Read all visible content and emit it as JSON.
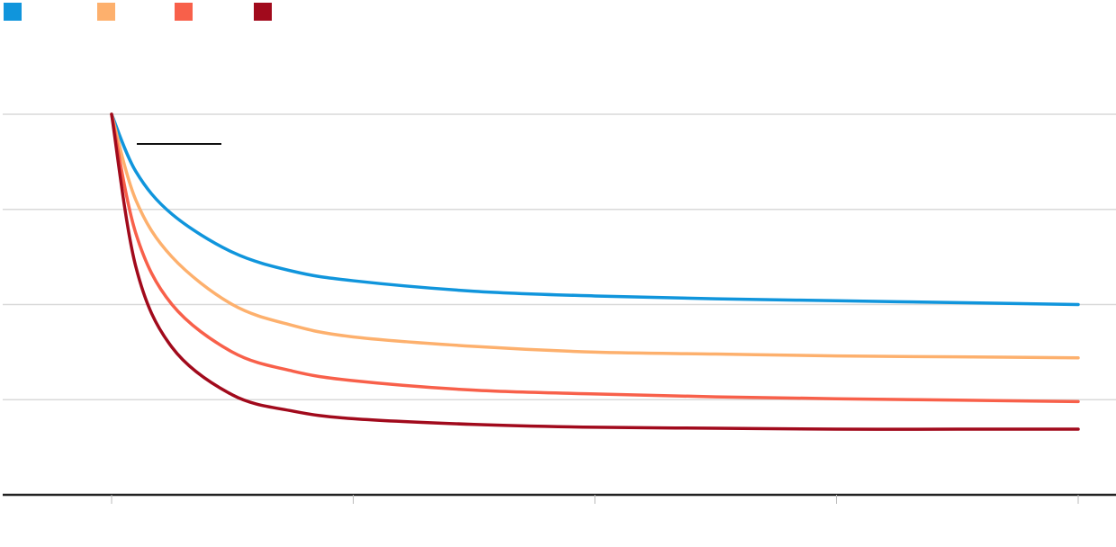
{
  "chart_data": {
    "type": "line",
    "title": "",
    "xlabel": "",
    "ylabel": "",
    "ylim": [
      0,
      4
    ],
    "xlim": [
      0,
      4
    ],
    "grid": true,
    "legend_placement": "top-left",
    "annotation": "",
    "series": [
      {
        "color": "#1095dc",
        "x": [
          0,
          0.1,
          0.25,
          0.5,
          0.75,
          1,
          1.5,
          2,
          2.5,
          3,
          3.5,
          4
        ],
        "values": [
          4,
          3.4,
          2.95,
          2.55,
          2.35,
          2.25,
          2.14,
          2.09,
          2.06,
          2.04,
          2.02,
          2.0
        ]
      },
      {
        "color": "#fdb06d",
        "x": [
          0,
          0.1,
          0.25,
          0.5,
          0.75,
          1,
          1.5,
          2,
          2.5,
          3,
          3.5,
          4
        ],
        "values": [
          4,
          3.1,
          2.5,
          2.0,
          1.78,
          1.66,
          1.56,
          1.5,
          1.48,
          1.46,
          1.45,
          1.44
        ]
      },
      {
        "color": "#f8604a",
        "x": [
          0,
          0.1,
          0.25,
          0.5,
          0.75,
          1,
          1.5,
          2,
          2.5,
          3,
          3.5,
          4
        ],
        "values": [
          4,
          2.75,
          2.0,
          1.5,
          1.3,
          1.2,
          1.1,
          1.06,
          1.03,
          1.01,
          0.995,
          0.98
        ]
      },
      {
        "color": "#a10a1c",
        "x": [
          0,
          0.1,
          0.25,
          0.5,
          0.75,
          1,
          1.5,
          2,
          2.5,
          3,
          3.5,
          4
        ],
        "values": [
          4,
          2.4,
          1.55,
          1.05,
          0.88,
          0.8,
          0.74,
          0.71,
          0.7,
          0.69,
          0.69,
          0.69
        ]
      }
    ],
    "x_ticks": [
      0,
      1,
      2,
      3,
      4
    ],
    "y_gridlines": [
      1,
      2,
      3,
      4
    ]
  }
}
